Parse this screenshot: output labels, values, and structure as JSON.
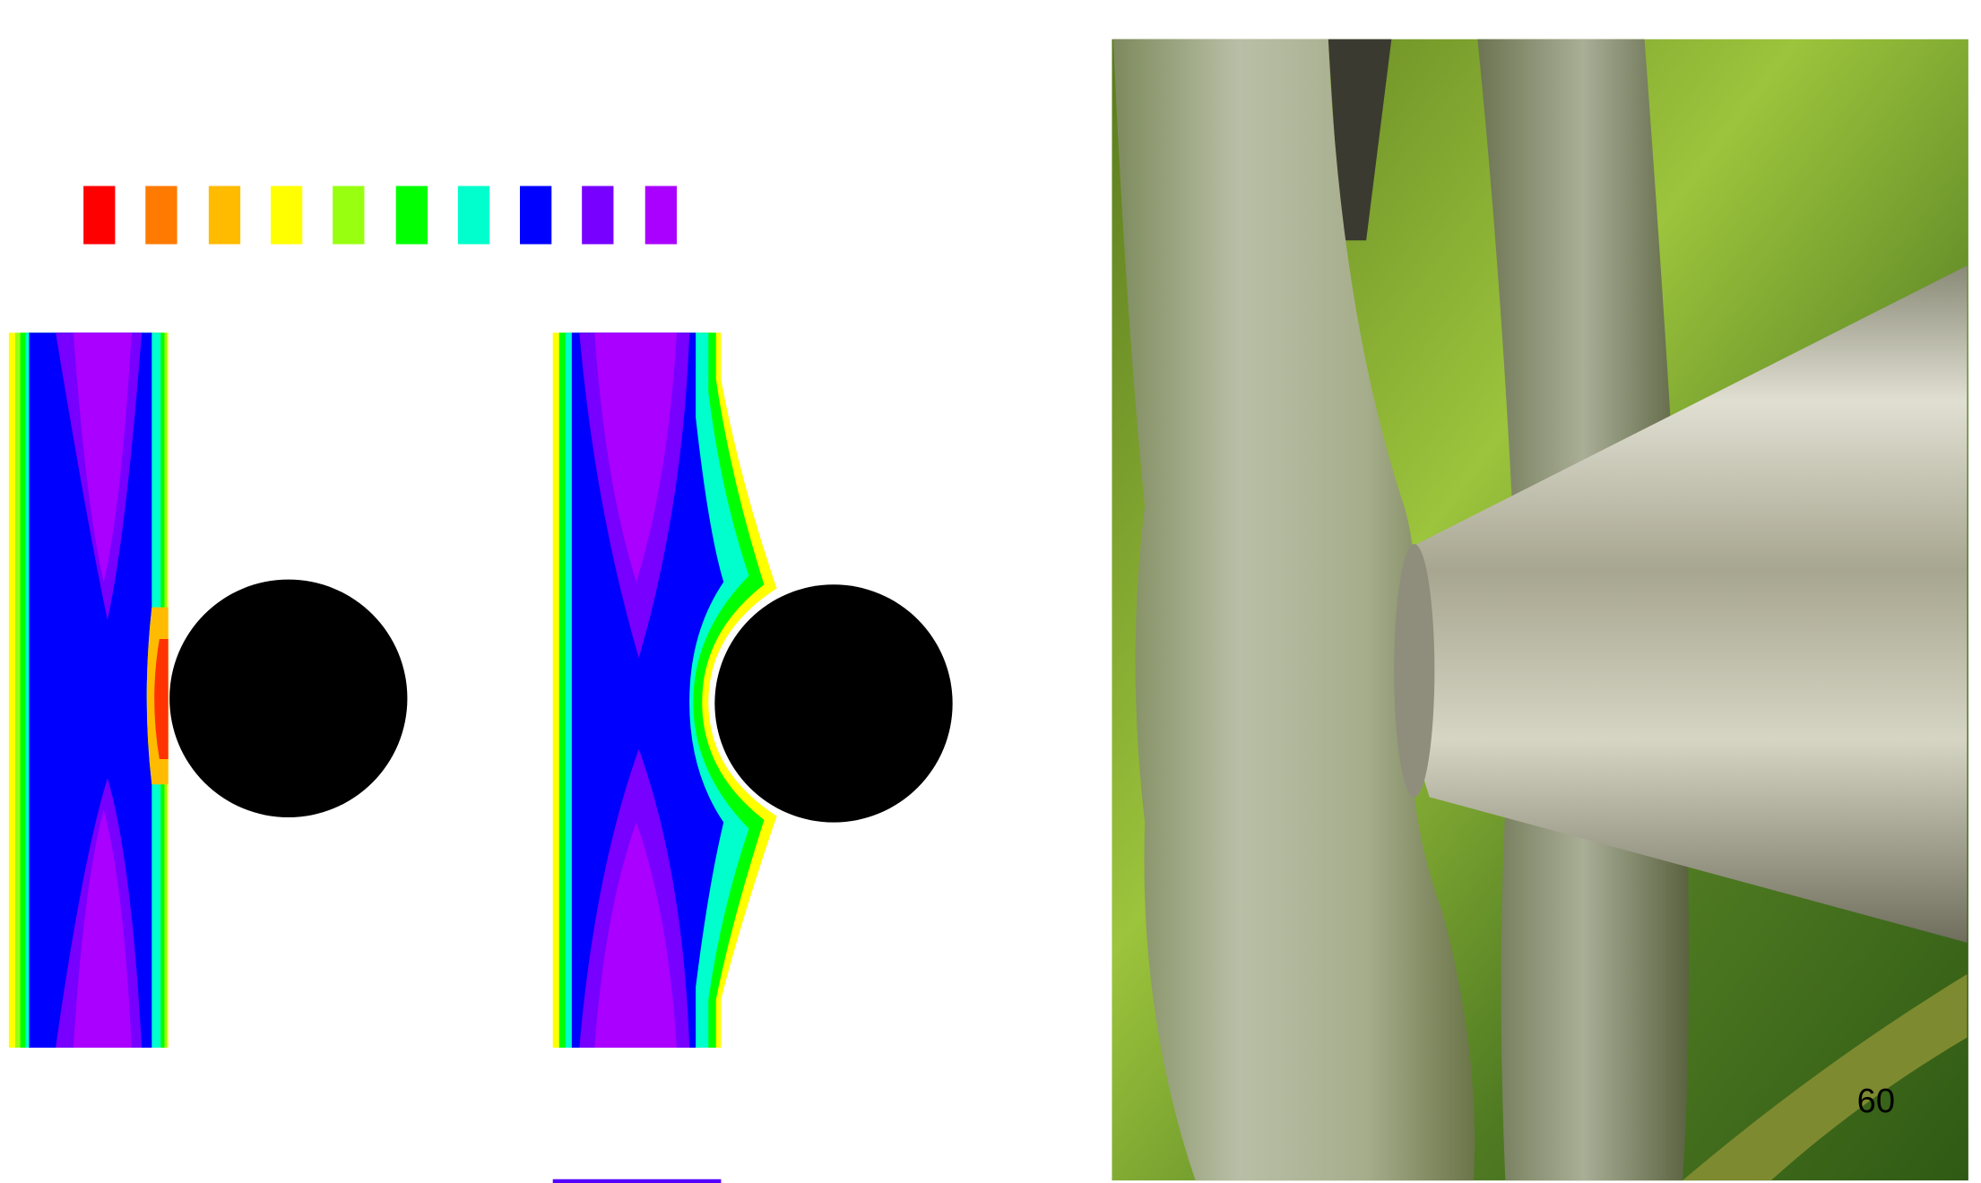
{
  "page_number": "60"
}
